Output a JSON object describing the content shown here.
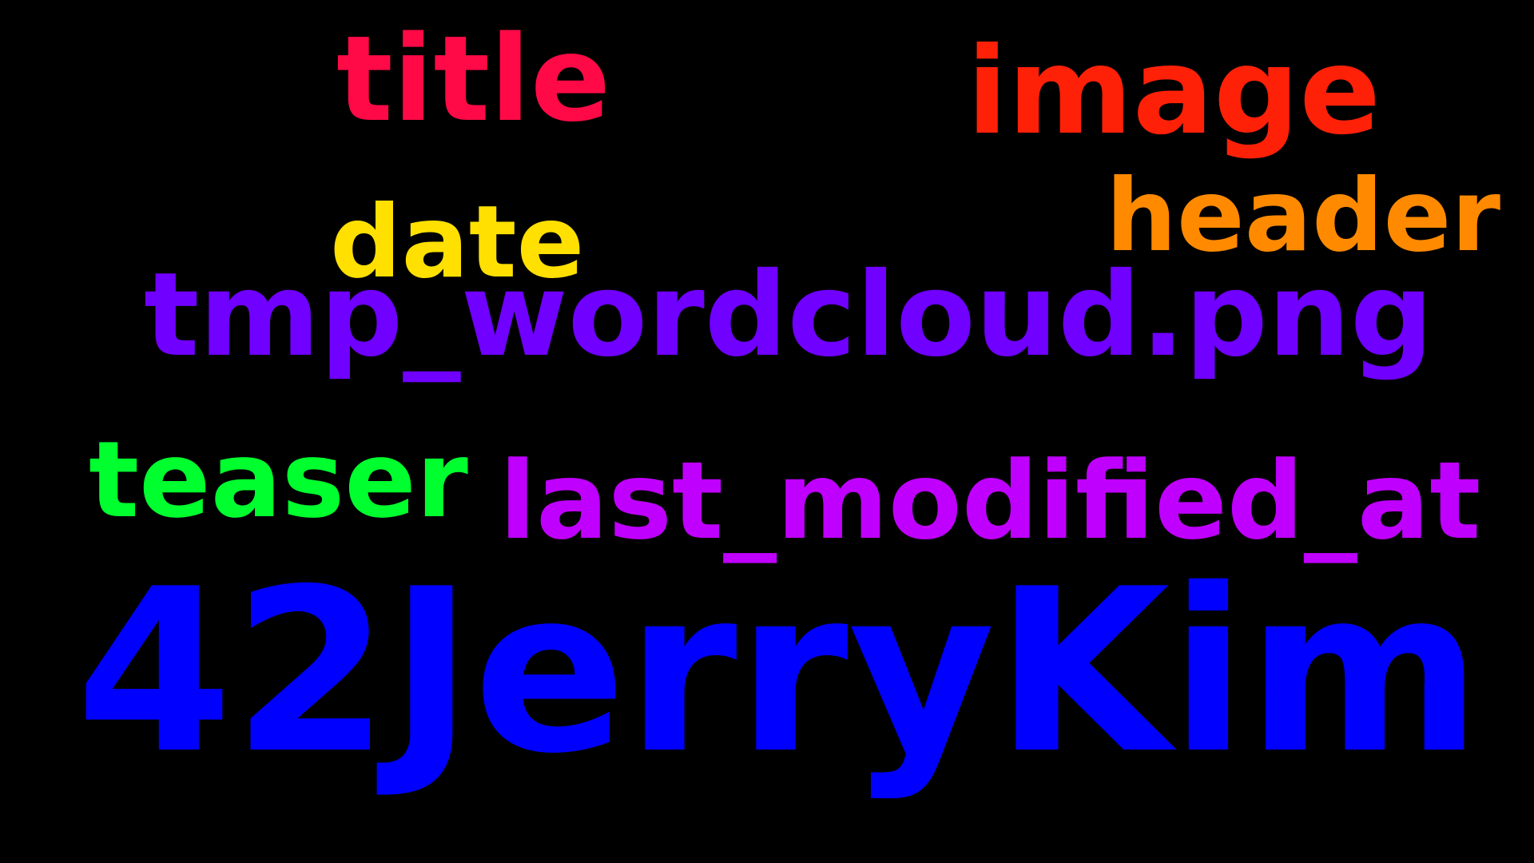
{
  "canvas": {
    "background": "#000000"
  },
  "words": {
    "title": {
      "text": "title",
      "color": "#ff0a46"
    },
    "image": {
      "text": "image",
      "color": "#ff2008"
    },
    "header": {
      "text": "header",
      "color": "#ff8a00"
    },
    "date": {
      "text": "date",
      "color": "#ffe000"
    },
    "tmp_wordcloud": {
      "text": "tmp_wordcloud.png",
      "color": "#7000ff"
    },
    "teaser": {
      "text": "teaser",
      "color": "#00ff2e"
    },
    "last_modified_at": {
      "text": "last_modified_at",
      "color": "#c000ff"
    },
    "jerrykim": {
      "text": "42JerryKim",
      "color": "#0000ff"
    }
  }
}
